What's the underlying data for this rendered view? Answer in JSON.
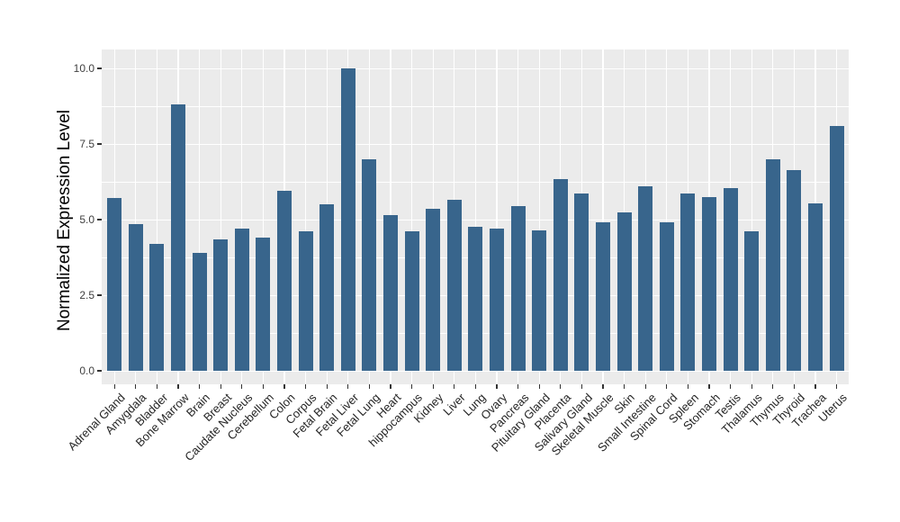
{
  "chart_data": {
    "type": "bar",
    "title": "",
    "xlabel": "",
    "ylabel": "Normalized Expression Level",
    "legend_position": "none",
    "panel_bg": "#EBEBEB",
    "grid_color": "#FFFFFF",
    "bar_color": "#38658C",
    "tick_color": "#333333",
    "grid": {
      "horizontal": "major+minor",
      "vertical": "major-per-category"
    },
    "y_axis": {
      "tick_labels": [
        "0.0",
        "2.5",
        "5.0",
        "7.5",
        "10.0"
      ],
      "tick_values": [
        0,
        2.5,
        5.0,
        7.5,
        10.0
      ],
      "minor_tick_values": [
        1.25,
        3.75,
        6.25,
        8.75
      ],
      "ylim": [
        0,
        10.5
      ]
    },
    "categories": [
      "Adrenal Gland",
      "Amygdala",
      "Bladder",
      "Bone Marrow",
      "Brain",
      "Breast",
      "Caudate Nucleus",
      "Cerebellum",
      "Colon",
      "Corpus",
      "Fetal Brain",
      "Fetal Liver",
      "Fetal Lung",
      "Heart",
      "hippocampus",
      "Kidney",
      "Liver",
      "Lung",
      "Ovary",
      "Pancreas",
      "Pituitary Gland",
      "Placenta",
      "Salivary Gland",
      "Skeletal Muscle",
      "Skin",
      "Small Intestine",
      "Spinal Cord",
      "Spleen",
      "Stomach",
      "Testis",
      "Thalamus",
      "Thymus",
      "Thyroid",
      "Trachea",
      "Uterus"
    ],
    "values": [
      5.7,
      4.85,
      4.2,
      8.8,
      3.9,
      4.35,
      4.7,
      4.4,
      5.95,
      4.6,
      5.5,
      10.0,
      7.0,
      5.15,
      4.6,
      5.35,
      5.65,
      4.75,
      4.7,
      5.45,
      4.65,
      6.35,
      5.85,
      4.9,
      5.25,
      6.1,
      4.9,
      5.85,
      5.75,
      6.05,
      4.6,
      7.0,
      6.65,
      5.55,
      8.1
    ]
  }
}
